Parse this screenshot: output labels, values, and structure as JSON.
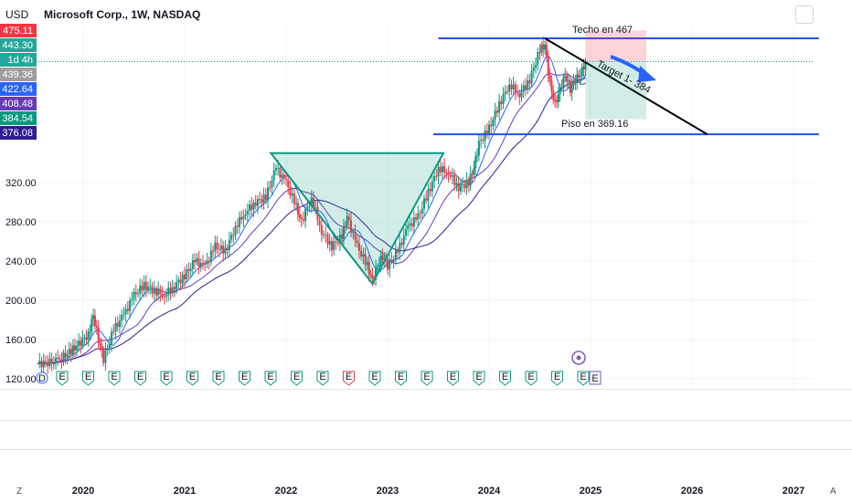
{
  "header": {
    "currency": "USD",
    "title": "Microsoft Corp., 1W, NASDAQ"
  },
  "price_labels": [
    {
      "text": "475.11",
      "color": "#f23645"
    },
    {
      "text": "443.30",
      "color": "#26a69a"
    },
    {
      "text": "1d 4h",
      "color": "#26a69a"
    },
    {
      "text": "439.36",
      "color": "#9e9e9e"
    },
    {
      "text": "422.64",
      "color": "#2962ff"
    },
    {
      "text": "408.48",
      "color": "#673ab7"
    },
    {
      "text": "384.54",
      "color": "#089981"
    },
    {
      "text": "376.08",
      "color": "#311b92"
    }
  ],
  "annotations": {
    "techo": "Techo en 467",
    "piso": "Piso en 369.16",
    "target": "Target 1- 384"
  },
  "corner": {
    "left": "Z",
    "right": "A"
  },
  "event_markers": {
    "dividend": "D",
    "earnings": "E"
  },
  "chart_data": {
    "type": "candlestick",
    "title": "Microsoft Corp., 1W, NASDAQ",
    "y_tick_labels": [
      "120.00",
      "160.00",
      "200.00",
      "240.00",
      "280.00",
      "320.00"
    ],
    "x_tick_labels": [
      "2020",
      "2021",
      "2022",
      "2023",
      "2024",
      "2025",
      "2026",
      "2027"
    ],
    "ylim": [
      115,
      475
    ],
    "xlim": [
      2019.5,
      2027.55
    ],
    "weekly_close_path": [
      [
        2019.55,
        135
      ],
      [
        2019.75,
        138
      ],
      [
        2019.9,
        150
      ],
      [
        2020.05,
        165
      ],
      [
        2020.1,
        185
      ],
      [
        2020.15,
        160
      ],
      [
        2020.2,
        140
      ],
      [
        2020.3,
        170
      ],
      [
        2020.4,
        185
      ],
      [
        2020.5,
        205
      ],
      [
        2020.6,
        215
      ],
      [
        2020.7,
        210
      ],
      [
        2020.8,
        205
      ],
      [
        2020.9,
        215
      ],
      [
        2021.0,
        225
      ],
      [
        2021.1,
        240
      ],
      [
        2021.2,
        235
      ],
      [
        2021.3,
        255
      ],
      [
        2021.4,
        250
      ],
      [
        2021.5,
        275
      ],
      [
        2021.6,
        290
      ],
      [
        2021.7,
        300
      ],
      [
        2021.8,
        305
      ],
      [
        2021.9,
        335
      ],
      [
        2022.0,
        320
      ],
      [
        2022.1,
        295
      ],
      [
        2022.15,
        280
      ],
      [
        2022.25,
        305
      ],
      [
        2022.35,
        270
      ],
      [
        2022.45,
        255
      ],
      [
        2022.55,
        265
      ],
      [
        2022.6,
        285
      ],
      [
        2022.7,
        255
      ],
      [
        2022.8,
        235
      ],
      [
        2022.85,
        220
      ],
      [
        2022.9,
        235
      ],
      [
        2022.95,
        245
      ],
      [
        2023.0,
        235
      ],
      [
        2023.1,
        250
      ],
      [
        2023.2,
        275
      ],
      [
        2023.3,
        285
      ],
      [
        2023.4,
        310
      ],
      [
        2023.5,
        335
      ],
      [
        2023.6,
        330
      ],
      [
        2023.7,
        315
      ],
      [
        2023.8,
        320
      ],
      [
        2023.85,
        335
      ],
      [
        2023.9,
        360
      ],
      [
        2024.0,
        375
      ],
      [
        2024.1,
        400
      ],
      [
        2024.2,
        420
      ],
      [
        2024.3,
        410
      ],
      [
        2024.4,
        425
      ],
      [
        2024.5,
        455
      ],
      [
        2024.55,
        460
      ],
      [
        2024.6,
        420
      ],
      [
        2024.65,
        400
      ],
      [
        2024.7,
        415
      ],
      [
        2024.75,
        430
      ],
      [
        2024.8,
        415
      ],
      [
        2024.85,
        425
      ],
      [
        2024.9,
        430
      ],
      [
        2024.95,
        443
      ]
    ],
    "moving_averages": [
      {
        "color": "#2962ff",
        "last": 422.64
      },
      {
        "color": "#673ab7",
        "last": 408.48
      },
      {
        "color": "#311b92",
        "last": 376.08
      }
    ],
    "drawings": {
      "ceiling_line": {
        "y": 467,
        "x": [
          2023.5,
          2027.25
        ]
      },
      "floor_line": {
        "y": 369.16,
        "x": [
          2023.45,
          2027.25
        ]
      },
      "descending_trendline": {
        "from": [
          2024.55,
          467
        ],
        "to": [
          2026.15,
          369.16
        ]
      },
      "triangle_pattern": {
        "points": [
          [
            2021.85,
            350
          ],
          [
            2023.55,
            350
          ],
          [
            2022.85,
            217
          ]
        ]
      },
      "short_position": {
        "x": [
          2024.95,
          2025.55
        ],
        "entry": 443.3,
        "stop": 475,
        "target": 384.54
      }
    }
  }
}
